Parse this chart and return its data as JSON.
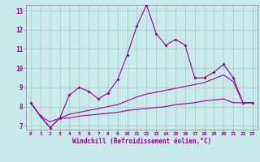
{
  "x": [
    0,
    1,
    2,
    3,
    4,
    5,
    6,
    7,
    8,
    9,
    10,
    11,
    12,
    13,
    14,
    15,
    16,
    17,
    18,
    19,
    20,
    21,
    22,
    23
  ],
  "line1": [
    8.2,
    7.5,
    6.9,
    7.4,
    8.6,
    9.0,
    8.8,
    8.4,
    8.7,
    9.4,
    10.7,
    12.2,
    13.3,
    11.8,
    11.2,
    11.5,
    11.2,
    9.5,
    9.5,
    9.8,
    10.2,
    9.5,
    8.2,
    8.2
  ],
  "line2": [
    8.2,
    7.5,
    6.9,
    7.4,
    7.4,
    7.5,
    7.55,
    7.6,
    7.65,
    7.7,
    7.8,
    7.85,
    7.9,
    7.95,
    8.0,
    8.1,
    8.15,
    8.2,
    8.3,
    8.35,
    8.4,
    8.2,
    8.2,
    8.2
  ],
  "line3": [
    8.2,
    7.5,
    7.2,
    7.4,
    7.6,
    7.7,
    7.8,
    7.9,
    8.0,
    8.1,
    8.3,
    8.5,
    8.65,
    8.75,
    8.85,
    8.95,
    9.05,
    9.15,
    9.25,
    9.45,
    9.65,
    9.3,
    8.2,
    8.2
  ],
  "line_color": "#990099",
  "bg_color": "#c8eaea",
  "grid_color": "#b0cccc",
  "xlabel": "Windchill (Refroidissement éolien,°C)",
  "xlim": [
    -0.5,
    23.5
  ],
  "ylim": [
    6.8,
    13.3
  ],
  "yticks": [
    7,
    8,
    9,
    10,
    11,
    12,
    13
  ],
  "xticks": [
    0,
    1,
    2,
    3,
    4,
    5,
    6,
    7,
    8,
    9,
    10,
    11,
    12,
    13,
    14,
    15,
    16,
    17,
    18,
    19,
    20,
    21,
    22,
    23
  ]
}
